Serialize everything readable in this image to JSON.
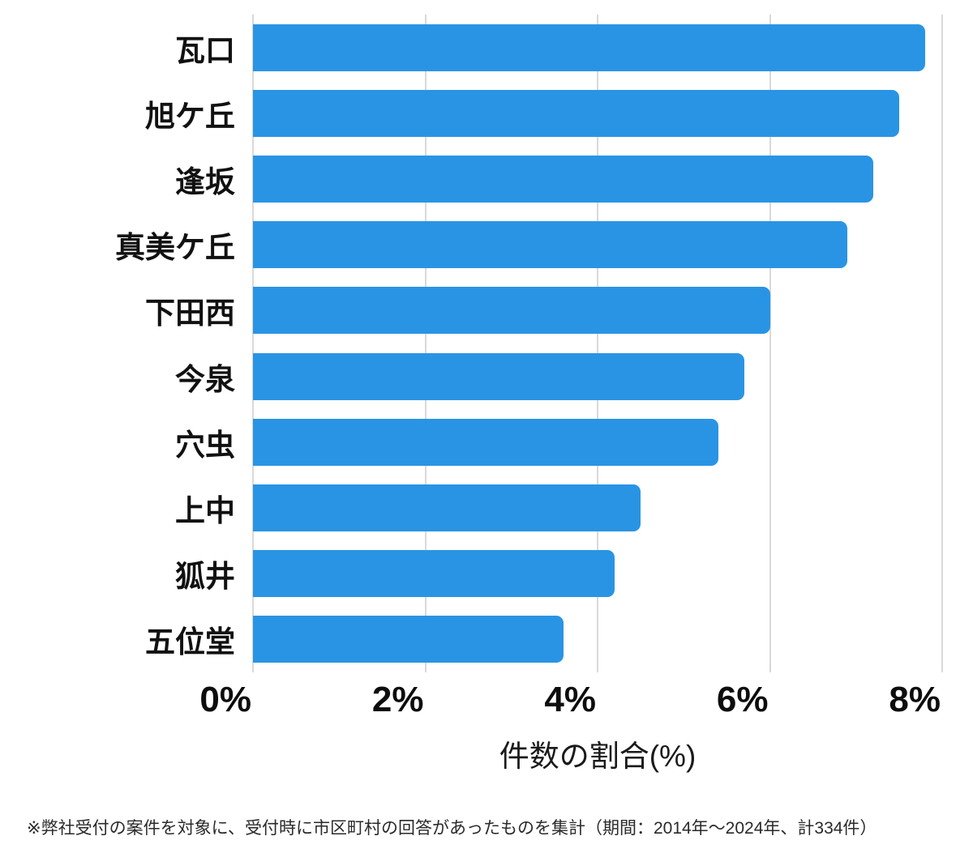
{
  "chart_data": {
    "type": "bar",
    "orientation": "horizontal",
    "title": "",
    "categories": [
      "瓦口",
      "旭ケ丘",
      "逢坂",
      "真美ケ丘",
      "下田西",
      "今泉",
      "穴虫",
      "上中",
      "狐井",
      "五位堂"
    ],
    "values": [
      7.8,
      7.5,
      7.2,
      6.9,
      6.0,
      5.7,
      5.4,
      4.5,
      4.2,
      3.6
    ],
    "unit": "%",
    "xlabel": "件数の割合(%)",
    "xlim": [
      0,
      8
    ],
    "xticks": [
      {
        "value": 0,
        "label": "0%"
      },
      {
        "value": 2,
        "label": "2%"
      },
      {
        "value": 4,
        "label": "4%"
      },
      {
        "value": 6,
        "label": "6%"
      },
      {
        "value": 8,
        "label": "8%"
      }
    ],
    "grid": true,
    "legend_position": "none",
    "bar_color": "#2A94E4",
    "grid_color": "#D9D9D9",
    "text_color": "#111111"
  },
  "footnote": {
    "text": "※弊社受付の案件を対象に、受付時に市区町村の回答があったものを集計（期間：2014年〜2024年、計334件）"
  }
}
